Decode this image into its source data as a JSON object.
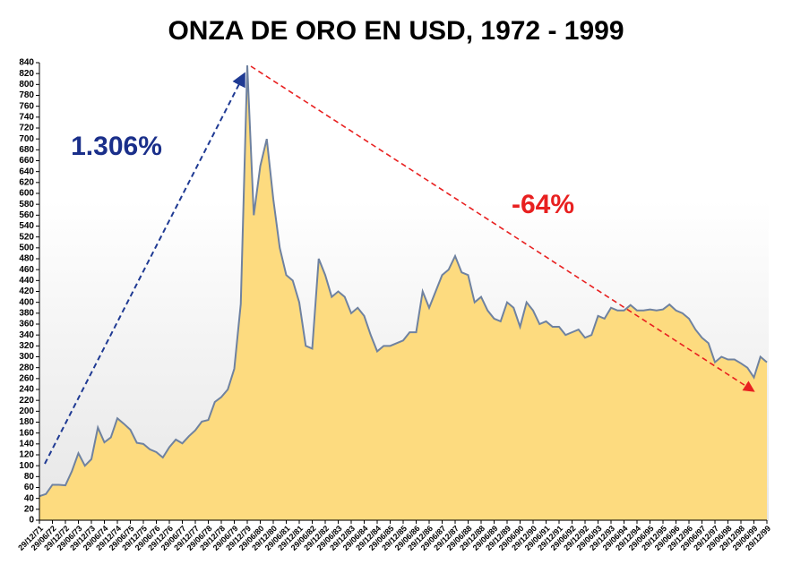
{
  "chart_data": {
    "type": "area",
    "title": "ONZA DE ORO EN USD, 1972 - 1999",
    "annotations": [
      "1.306%",
      "-64%"
    ],
    "categories": [
      "29/12/71",
      null,
      "29/06/72",
      null,
      "29/12/72",
      null,
      "29/06/73",
      null,
      "29/12/73",
      null,
      "29/06/74",
      null,
      "29/12/74",
      null,
      "29/06/75",
      null,
      "29/12/75",
      null,
      "29/06/76",
      null,
      "29/12/76",
      null,
      "29/06/77",
      null,
      "29/12/77",
      null,
      "29/06/78",
      null,
      "29/12/78",
      null,
      "29/06/79",
      null,
      "29/12/79",
      null,
      "29/06/80",
      null,
      "29/12/80",
      null,
      "29/06/81",
      null,
      "29/12/81",
      null,
      "29/06/82",
      null,
      "29/12/82",
      null,
      "29/06/83",
      null,
      "29/12/83",
      null,
      "29/06/84",
      null,
      "29/12/84",
      null,
      "29/06/85",
      null,
      "29/12/85",
      null,
      "29/06/86",
      null,
      "29/12/86",
      null,
      "29/06/87",
      null,
      "29/12/87",
      null,
      "29/06/88",
      null,
      "29/12/88",
      null,
      "29/06/89",
      null,
      "29/12/89",
      null,
      "29/06/90",
      null,
      "29/12/90",
      null,
      "29/06/91",
      null,
      "29/12/91",
      null,
      "29/06/92",
      null,
      "29/12/92",
      null,
      "29/06/93",
      null,
      "29/12/93",
      null,
      "29/06/94",
      null,
      "29/12/94",
      null,
      "29/06/95",
      null,
      "29/12/95",
      null,
      "29/06/96",
      null,
      "29/12/96",
      null,
      "29/06/97",
      null,
      "29/12/97",
      null,
      "29/06/98",
      null,
      "29/12/98",
      null,
      "29/06/99",
      null,
      "29/12/99"
    ],
    "values": [
      44,
      48,
      65,
      65,
      64,
      90,
      123,
      100,
      112,
      170,
      143,
      152,
      187,
      177,
      166,
      142,
      140,
      130,
      125,
      115,
      134,
      148,
      141,
      154,
      165,
      181,
      184,
      217,
      226,
      240,
      278,
      397,
      835,
      560,
      650,
      700,
      590,
      500,
      450,
      440,
      400,
      320,
      315,
      480,
      450,
      410,
      420,
      410,
      380,
      390,
      375,
      340,
      310,
      320,
      320,
      325,
      330,
      345,
      345,
      420,
      390,
      420,
      450,
      460,
      485,
      455,
      450,
      400,
      410,
      385,
      370,
      365,
      400,
      390,
      355,
      400,
      385,
      360,
      365,
      355,
      355,
      340,
      345,
      350,
      335,
      340,
      375,
      370,
      390,
      385,
      385,
      395,
      385,
      385,
      387,
      385,
      387,
      396,
      385,
      380,
      370,
      350,
      335,
      325,
      290,
      300,
      295,
      295,
      288,
      280,
      262,
      300,
      290
    ],
    "color": "#fddb7f",
    "line_color": "#6f82a0",
    "ylim": [
      0,
      840
    ],
    "yticks": [
      0,
      20,
      40,
      60,
      80,
      100,
      120,
      140,
      160,
      180,
      200,
      220,
      240,
      260,
      280,
      300,
      320,
      340,
      360,
      380,
      400,
      420,
      440,
      460,
      480,
      500,
      520,
      540,
      560,
      580,
      600,
      620,
      640,
      660,
      680,
      700,
      720,
      740,
      760,
      780,
      800,
      820,
      840
    ]
  }
}
